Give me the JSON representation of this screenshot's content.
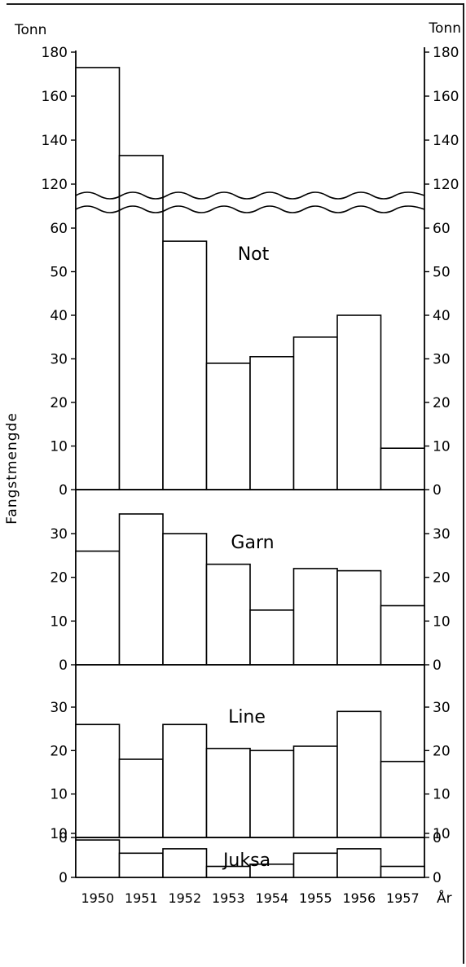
{
  "chart_data": [
    {
      "type": "bar",
      "title": "Not",
      "categories": [
        "1950",
        "1951",
        "1952",
        "1953",
        "1954",
        "1955",
        "1956",
        "1957"
      ],
      "values": [
        173,
        133,
        57,
        29,
        30.5,
        35,
        40,
        9.5
      ],
      "ylabel": "Fangstmengde",
      "y_unit": "Tonn",
      "yticks": [
        0,
        10,
        20,
        30,
        40,
        50,
        60,
        120,
        140,
        160,
        180
      ],
      "ylim": [
        0,
        180
      ],
      "axis_break": [
        65,
        115
      ]
    },
    {
      "type": "bar",
      "title": "Garn",
      "categories": [
        "1950",
        "1951",
        "1952",
        "1953",
        "1954",
        "1955",
        "1956",
        "1957"
      ],
      "values": [
        26,
        34.5,
        30,
        23,
        12.5,
        22,
        21.5,
        13.5
      ],
      "yticks": [
        0,
        10,
        20,
        30
      ],
      "ylim": [
        0,
        37
      ]
    },
    {
      "type": "bar",
      "title": "Line",
      "categories": [
        "1950",
        "1951",
        "1952",
        "1953",
        "1954",
        "1955",
        "1956",
        "1957"
      ],
      "values": [
        26,
        18,
        26,
        20.5,
        20,
        21,
        29,
        17.5
      ],
      "yticks": [
        0,
        10,
        20,
        30
      ],
      "ylim": [
        0,
        37
      ]
    },
    {
      "type": "bar",
      "title": "Juksa",
      "categories": [
        "1950",
        "1951",
        "1952",
        "1953",
        "1954",
        "1955",
        "1956",
        "1957"
      ],
      "values": [
        8.5,
        5.5,
        6.5,
        2.5,
        3,
        5.5,
        6.5,
        2.5
      ],
      "xlabel": "År",
      "yticks": [
        0,
        10
      ],
      "ylim": [
        0,
        15
      ]
    }
  ]
}
